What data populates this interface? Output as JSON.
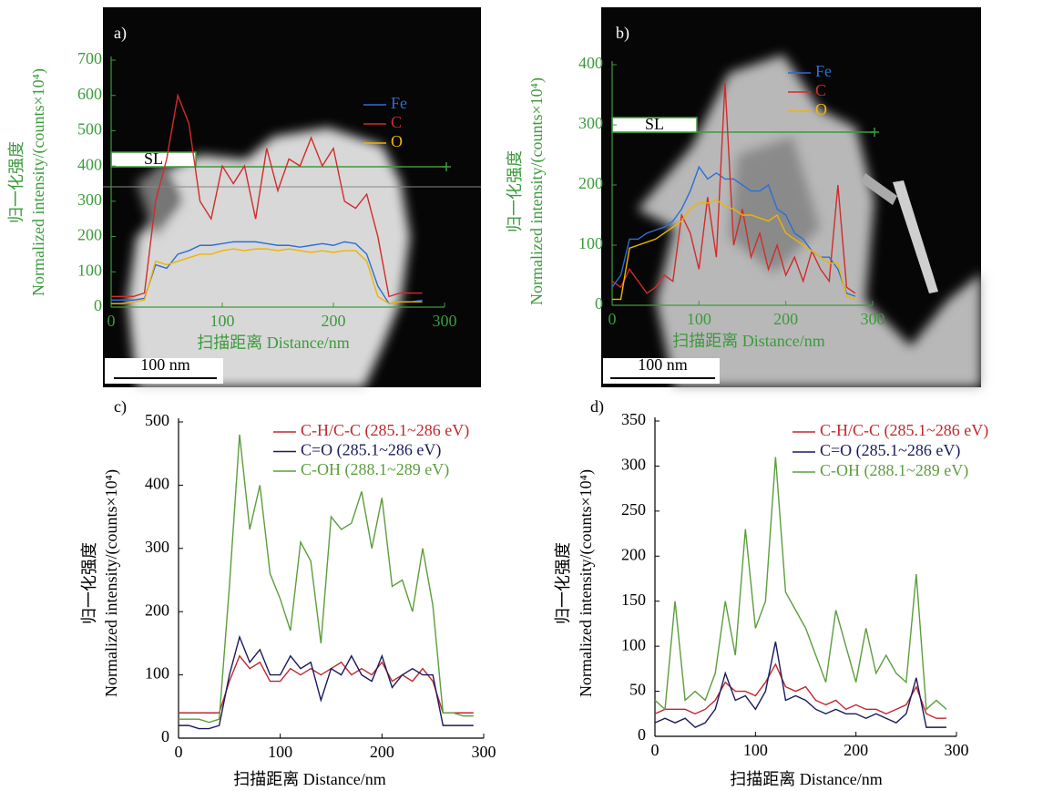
{
  "chart_data": [
    {
      "type": "line",
      "panel_label": "a)",
      "axis_color": "#3c9a3c",
      "xlabel": "扫描距离 Distance/nm",
      "ylabel": [
        "归一化强度",
        "Normalized intensity/(counts×10⁴)"
      ],
      "annotations": [
        "SL",
        "100 nm"
      ],
      "x": [
        0,
        10,
        20,
        30,
        40,
        50,
        60,
        70,
        80,
        90,
        100,
        110,
        120,
        130,
        140,
        150,
        160,
        170,
        180,
        190,
        200,
        210,
        220,
        230,
        240,
        250,
        260,
        270,
        280
      ],
      "series": [
        {
          "name": "Fe",
          "color": "#2a6fd6",
          "values": [
            20,
            20,
            20,
            25,
            120,
            110,
            150,
            160,
            175,
            175,
            180,
            185,
            185,
            185,
            180,
            175,
            175,
            170,
            175,
            180,
            175,
            185,
            180,
            150,
            60,
            10,
            15,
            15,
            20
          ]
        },
        {
          "name": "C",
          "color": "#d42a2a",
          "values": [
            30,
            30,
            30,
            40,
            300,
            420,
            600,
            520,
            300,
            250,
            400,
            350,
            400,
            250,
            450,
            330,
            420,
            400,
            480,
            400,
            450,
            300,
            280,
            320,
            200,
            30,
            40,
            40,
            40
          ]
        },
        {
          "name": "O",
          "color": "#f0b400",
          "values": [
            10,
            10,
            15,
            20,
            130,
            120,
            130,
            140,
            150,
            150,
            160,
            165,
            160,
            165,
            165,
            160,
            165,
            160,
            155,
            160,
            155,
            160,
            160,
            130,
            30,
            10,
            15,
            15,
            15
          ]
        }
      ],
      "xlim": [
        0,
        300
      ],
      "ylim": [
        0,
        700
      ],
      "xticks": [
        0,
        100,
        200,
        300
      ],
      "yticks": [
        0,
        100,
        200,
        300,
        400,
        500,
        600,
        700
      ]
    },
    {
      "type": "line",
      "panel_label": "b)",
      "axis_color": "#3c9a3c",
      "xlabel": "扫描距离 Distance/nm",
      "ylabel": [
        "归一化强度",
        "Normalized intensity/(counts×10⁴)"
      ],
      "annotations": [
        "SL",
        "100 nm"
      ],
      "x": [
        0,
        10,
        20,
        30,
        40,
        50,
        60,
        70,
        80,
        90,
        100,
        110,
        120,
        130,
        140,
        150,
        160,
        170,
        180,
        190,
        200,
        210,
        220,
        230,
        240,
        250,
        260,
        270,
        280
      ],
      "series": [
        {
          "name": "Fe",
          "color": "#2a6fd6",
          "values": [
            30,
            50,
            110,
            110,
            120,
            125,
            130,
            140,
            160,
            190,
            230,
            210,
            220,
            210,
            210,
            200,
            190,
            190,
            200,
            160,
            150,
            120,
            110,
            90,
            80,
            80,
            60,
            20,
            15
          ]
        },
        {
          "name": "C",
          "color": "#d42a2a",
          "values": [
            40,
            30,
            60,
            40,
            20,
            30,
            50,
            40,
            150,
            120,
            60,
            180,
            80,
            370,
            100,
            160,
            80,
            120,
            60,
            100,
            50,
            80,
            40,
            90,
            60,
            40,
            200,
            30,
            20
          ]
        },
        {
          "name": "O",
          "color": "#f0b400",
          "values": [
            10,
            10,
            95,
            100,
            105,
            110,
            120,
            130,
            140,
            160,
            170,
            170,
            175,
            165,
            160,
            150,
            150,
            145,
            140,
            150,
            120,
            110,
            100,
            90,
            80,
            70,
            70,
            15,
            10
          ]
        }
      ],
      "xlim": [
        0,
        300
      ],
      "ylim": [
        0,
        400
      ],
      "xticks": [
        0,
        100,
        200,
        300
      ],
      "yticks": [
        0,
        100,
        200,
        300,
        400
      ]
    },
    {
      "type": "line",
      "panel_label": "c)",
      "axis_color": "#000000",
      "xlabel": "扫描距离 Distance/nm",
      "ylabel": [
        "归一化强度",
        "Normalized intensity/(counts×10⁴)"
      ],
      "x": [
        0,
        10,
        20,
        30,
        40,
        50,
        60,
        70,
        80,
        90,
        100,
        110,
        120,
        130,
        140,
        150,
        160,
        170,
        180,
        190,
        200,
        210,
        220,
        230,
        240,
        250,
        260,
        270,
        280,
        290
      ],
      "series": [
        {
          "name": "C-H/C-C (285.1~286 eV)",
          "color": "#c0282d",
          "values": [
            40,
            40,
            40,
            40,
            40,
            90,
            130,
            110,
            120,
            90,
            90,
            110,
            100,
            110,
            100,
            110,
            120,
            100,
            110,
            100,
            120,
            90,
            100,
            90,
            110,
            90,
            40,
            40,
            40,
            40
          ]
        },
        {
          "name": "C=O (285.1~286 eV)",
          "color": "#1a1a5e",
          "values": [
            20,
            20,
            15,
            15,
            20,
            100,
            160,
            120,
            140,
            100,
            100,
            130,
            110,
            120,
            60,
            110,
            100,
            130,
            100,
            90,
            130,
            80,
            100,
            110,
            100,
            100,
            20,
            20,
            20,
            20
          ]
        },
        {
          "name": "C-OH (288.1~289 eV)",
          "color": "#5c9e3c",
          "values": [
            30,
            30,
            30,
            25,
            30,
            240,
            480,
            330,
            400,
            260,
            220,
            170,
            310,
            280,
            150,
            350,
            330,
            340,
            390,
            300,
            380,
            240,
            250,
            200,
            300,
            210,
            40,
            40,
            35,
            35
          ]
        }
      ],
      "xlim": [
        0,
        300
      ],
      "ylim": [
        0,
        500
      ],
      "xticks": [
        0,
        100,
        200,
        300
      ],
      "yticks": [
        0,
        100,
        200,
        300,
        400,
        500
      ]
    },
    {
      "type": "line",
      "panel_label": "d)",
      "axis_color": "#000000",
      "xlabel": "扫描距离 Distance/nm",
      "ylabel": [
        "归一化强度",
        "Normalized intensity/(counts×10⁴)"
      ],
      "x": [
        0,
        10,
        20,
        30,
        40,
        50,
        60,
        70,
        80,
        90,
        100,
        110,
        120,
        130,
        140,
        150,
        160,
        170,
        180,
        190,
        200,
        210,
        220,
        230,
        240,
        250,
        260,
        270,
        280,
        290
      ],
      "series": [
        {
          "name": "C-H/C-C (285.1~286 eV)",
          "color": "#c0282d",
          "values": [
            25,
            30,
            30,
            30,
            25,
            30,
            40,
            60,
            50,
            50,
            45,
            60,
            80,
            55,
            50,
            55,
            40,
            35,
            40,
            30,
            35,
            30,
            30,
            25,
            30,
            35,
            55,
            25,
            20,
            20
          ]
        },
        {
          "name": "C=O (285.1~286 eV)",
          "color": "#1a1a5e",
          "values": [
            15,
            20,
            15,
            20,
            10,
            15,
            30,
            70,
            40,
            45,
            30,
            50,
            105,
            40,
            45,
            40,
            30,
            25,
            30,
            25,
            25,
            20,
            25,
            20,
            15,
            25,
            65,
            10,
            10,
            10
          ]
        },
        {
          "name": "C-OH (288.1~289 eV)",
          "color": "#5c9e3c",
          "values": [
            40,
            30,
            150,
            40,
            50,
            40,
            70,
            150,
            90,
            230,
            120,
            150,
            310,
            160,
            140,
            120,
            90,
            60,
            140,
            100,
            60,
            120,
            70,
            90,
            70,
            60,
            180,
            30,
            40,
            30
          ]
        }
      ],
      "xlim": [
        0,
        300
      ],
      "ylim": [
        0,
        350
      ],
      "xticks": [
        0,
        100,
        200,
        300
      ],
      "yticks": [
        0,
        50,
        100,
        150,
        200,
        250,
        300,
        350
      ]
    }
  ]
}
